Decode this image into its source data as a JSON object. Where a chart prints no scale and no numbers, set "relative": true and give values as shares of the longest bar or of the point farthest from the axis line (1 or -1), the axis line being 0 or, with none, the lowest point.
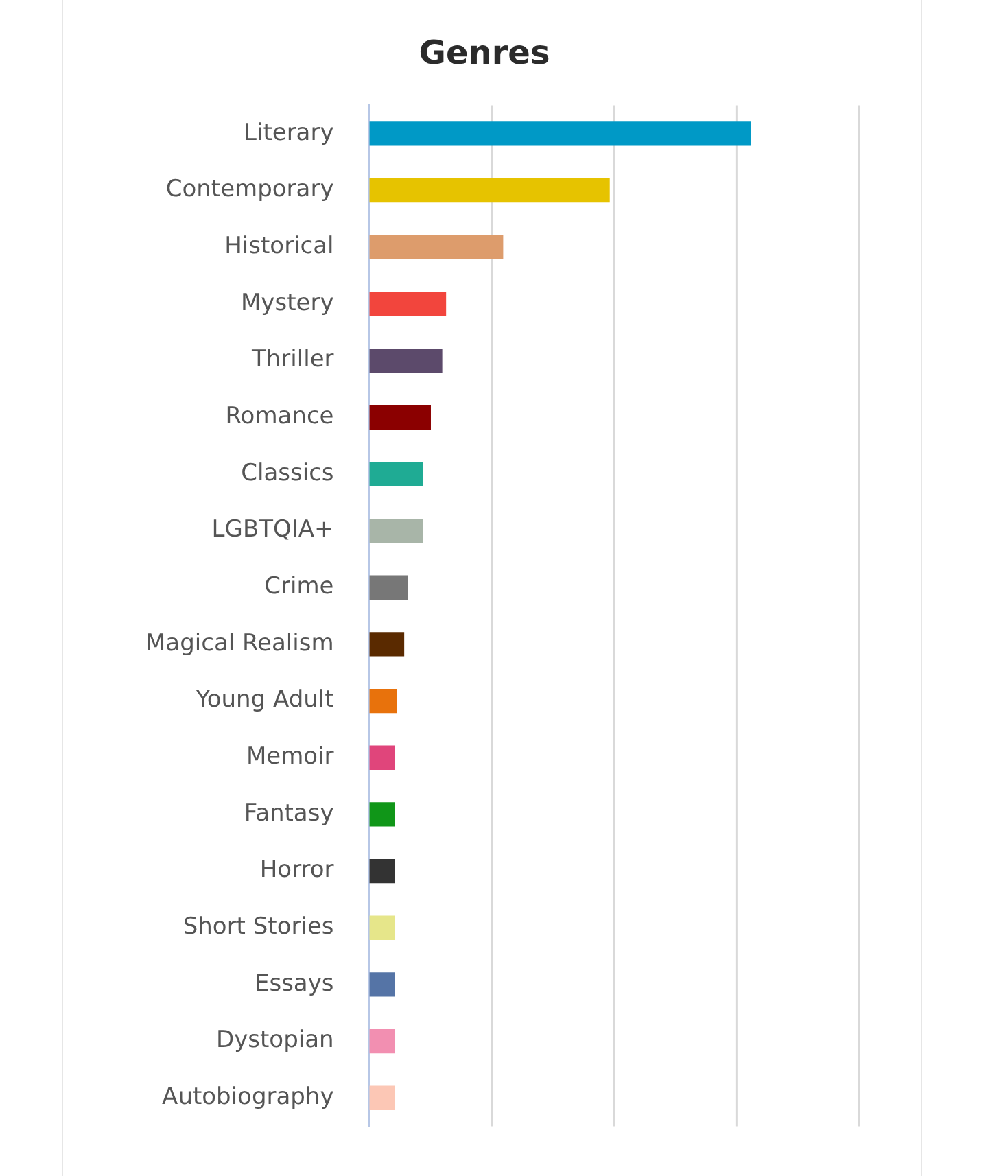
{
  "chart_data": {
    "type": "bar",
    "title": "Genres",
    "orientation": "horizontal",
    "relative": true,
    "legend": false,
    "ref_lines": [
      {
        "axis": "x",
        "value": 0.321,
        "color": "#d9d9d9"
      },
      {
        "axis": "x",
        "value": 0.643,
        "color": "#d9d9d9"
      },
      {
        "axis": "x",
        "value": 0.964,
        "color": "#d9d9d9"
      },
      {
        "axis": "x",
        "value": 1.286,
        "color": "#d9d9d9"
      }
    ],
    "categories": [
      "Literary",
      "Contemporary",
      "Historical",
      "Mystery",
      "Thriller",
      "Romance",
      "Classics",
      "LGBTQIA+",
      "Crime",
      "Magical Realism",
      "Young Adult",
      "Memoir",
      "Fantasy",
      "Horror",
      "Short Stories",
      "Essays",
      "Dystopian",
      "Autobiography"
    ],
    "values": [
      1,
      0.63,
      0.35,
      0.2,
      0.19,
      0.16,
      0.14,
      0.14,
      0.1,
      0.09,
      0.07,
      0.065,
      0.065,
      0.065,
      0.065,
      0.065,
      0.065,
      0.065
    ],
    "colors": [
      "#0099c6",
      "#e6c300",
      "#dd9c6c",
      "#f2453d",
      "#5c4a6b",
      "#8b0000",
      "#1fab94",
      "#a8b5a8",
      "#777777",
      "#5a2a00",
      "#e8720c",
      "#e0457b",
      "#109618",
      "#333333",
      "#e6e68a",
      "#5574a6",
      "#f28fb1",
      "#fcc7b5"
    ]
  }
}
